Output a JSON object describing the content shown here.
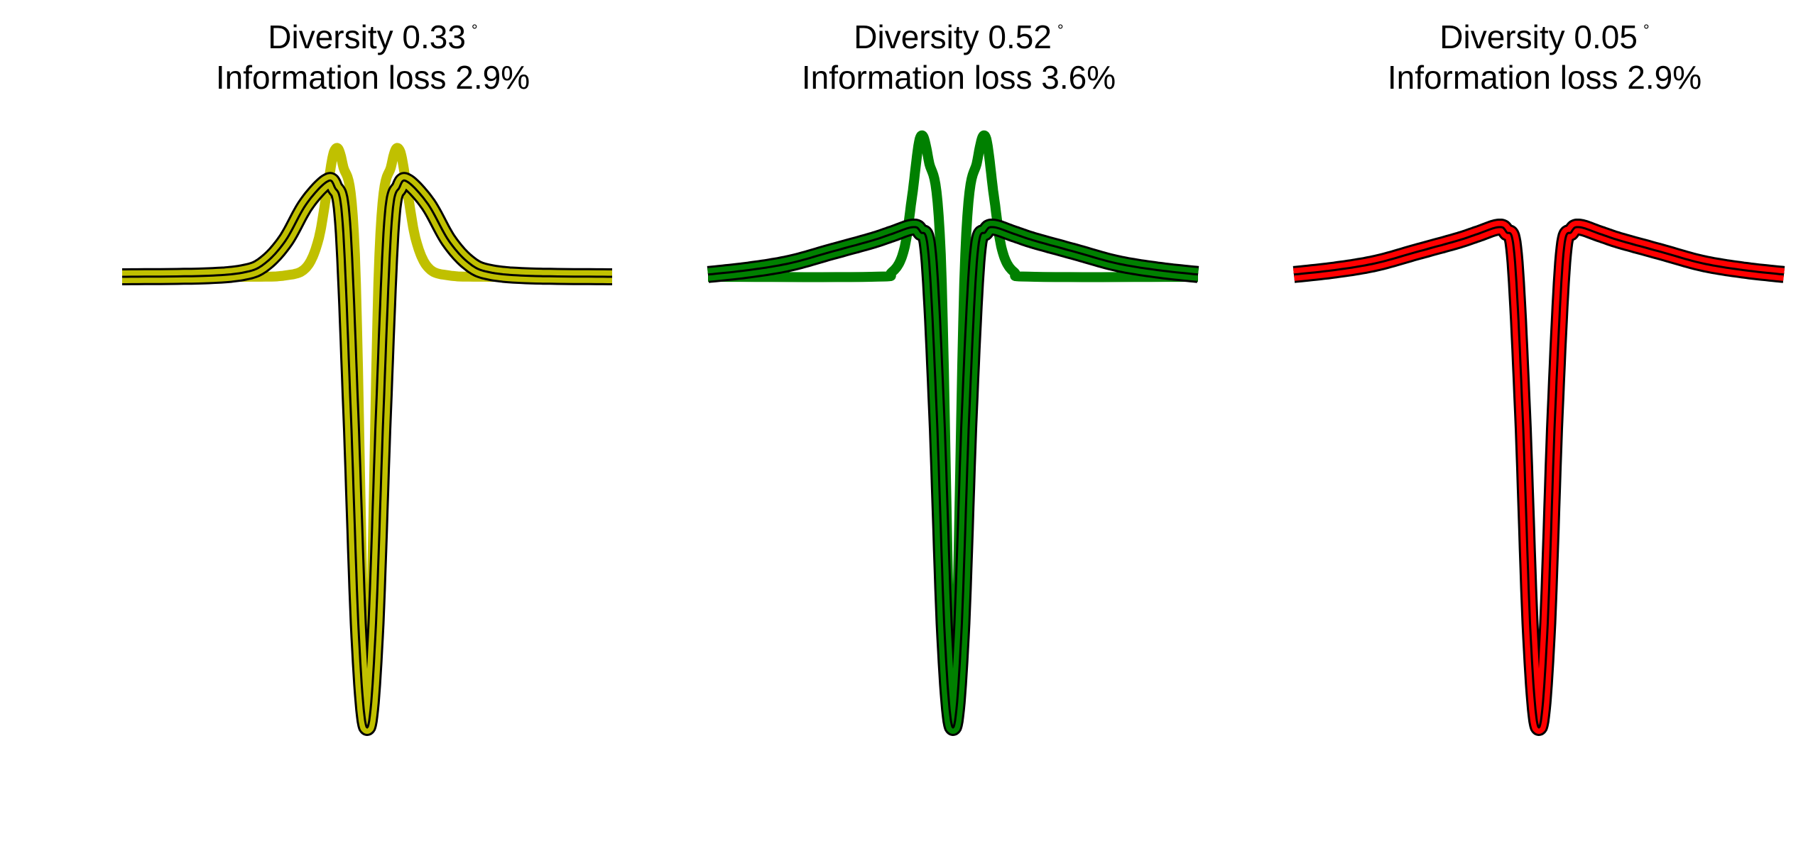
{
  "chart_data": [
    {
      "type": "line",
      "title_line1": "Diversity 0.33",
      "title_degree": "°",
      "title_line2": "Information loss 2.9%",
      "colors": {
        "fill": "#c0c000",
        "outline": "#000000"
      },
      "x_range": [
        -6,
        6
      ],
      "y_range": [
        -1.0,
        0.3
      ],
      "series": [
        {
          "role": "fill-curve-a",
          "x": [
            -6,
            -3,
            -2,
            -1.5,
            -1.2,
            -1.0,
            -0.8,
            -0.6,
            -0.3,
            0,
            0.3,
            0.6,
            0.8,
            1.0,
            1.2,
            1.5,
            2,
            3,
            6
          ],
          "y": [
            0,
            0,
            0.003,
            0.02,
            0.08,
            0.18,
            0.28,
            0.25,
            0.05,
            -1.0,
            0.05,
            0.25,
            0.28,
            0.18,
            0.08,
            0.02,
            0.003,
            0,
            0
          ]
        },
        {
          "role": "outline-pair-b",
          "x": [
            -6,
            -4,
            -3,
            -2.5,
            -2,
            -1.5,
            -1.0,
            -0.8,
            -0.6,
            -0.4,
            -0.2,
            0,
            0.2,
            0.4,
            0.6,
            0.8,
            1.0,
            1.5,
            2,
            2.5,
            3,
            4,
            6
          ],
          "y": [
            0,
            0.002,
            0.01,
            0.03,
            0.08,
            0.16,
            0.21,
            0.2,
            0.12,
            -0.3,
            -0.8,
            -1.0,
            -0.8,
            -0.3,
            0.12,
            0.2,
            0.21,
            0.16,
            0.08,
            0.03,
            0.01,
            0.002,
            0
          ]
        }
      ]
    },
    {
      "type": "line",
      "title_line1": "Diversity 0.52",
      "title_degree": "°",
      "title_line2": "Information loss 3.6%",
      "colors": {
        "fill": "#008000",
        "outline": "#000000"
      },
      "x_range": [
        -6,
        6
      ],
      "y_range": [
        -1.0,
        0.3
      ],
      "series": [
        {
          "role": "fill-curve-a",
          "x": [
            -6,
            -2,
            -1.5,
            -1.2,
            -1.0,
            -0.8,
            -0.6,
            -0.3,
            0,
            0.3,
            0.6,
            0.8,
            1.0,
            1.2,
            1.5,
            2,
            6
          ],
          "y": [
            0,
            0,
            0.01,
            0.06,
            0.18,
            0.31,
            0.26,
            0.05,
            -1.0,
            0.05,
            0.26,
            0.31,
            0.18,
            0.06,
            0.01,
            0,
            0
          ]
        },
        {
          "role": "outline-pair-b",
          "x": [
            -6,
            -5,
            -4,
            -3,
            -2,
            -1.5,
            -1.0,
            -0.8,
            -0.6,
            -0.4,
            -0.2,
            0,
            0.2,
            0.4,
            0.6,
            0.8,
            1.0,
            1.5,
            2,
            3,
            4,
            5,
            6
          ],
          "y": [
            0.005,
            0.015,
            0.03,
            0.055,
            0.08,
            0.095,
            0.11,
            0.1,
            0.05,
            -0.3,
            -0.8,
            -1.0,
            -0.8,
            -0.3,
            0.05,
            0.1,
            0.11,
            0.095,
            0.08,
            0.055,
            0.03,
            0.015,
            0.005
          ]
        }
      ]
    },
    {
      "type": "line",
      "title_line1": "Diversity 0.05",
      "title_degree": "°",
      "title_line2": "Information loss 2.9%",
      "colors": {
        "fill": "#ff0000",
        "outline": "#000000"
      },
      "x_range": [
        -6,
        6
      ],
      "y_range": [
        -1.0,
        0.3
      ],
      "series": [
        {
          "role": "fill-curve-a",
          "x": [
            -6,
            -5,
            -4,
            -3,
            -2,
            -1.5,
            -1.0,
            -0.8,
            -0.6,
            -0.4,
            -0.2,
            0,
            0.2,
            0.4,
            0.6,
            0.8,
            1.0,
            1.5,
            2,
            3,
            4,
            5,
            6
          ],
          "y": [
            0.005,
            0.015,
            0.03,
            0.055,
            0.085,
            0.1,
            0.115,
            0.105,
            0.05,
            -0.3,
            -0.8,
            -1.0,
            -0.8,
            -0.3,
            0.05,
            0.105,
            0.115,
            0.1,
            0.085,
            0.055,
            0.03,
            0.015,
            0.005
          ]
        },
        {
          "role": "outline-pair-b",
          "x": [
            -6,
            -5,
            -4,
            -3,
            -2,
            -1.5,
            -1.0,
            -0.8,
            -0.6,
            -0.4,
            -0.2,
            0,
            0.2,
            0.4,
            0.6,
            0.8,
            1.0,
            1.5,
            2,
            3,
            4,
            5,
            6
          ],
          "y": [
            0.005,
            0.015,
            0.03,
            0.055,
            0.08,
            0.095,
            0.11,
            0.1,
            0.05,
            -0.3,
            -0.8,
            -1.0,
            -0.8,
            -0.3,
            0.05,
            0.1,
            0.11,
            0.095,
            0.08,
            0.055,
            0.03,
            0.015,
            0.005
          ]
        }
      ]
    }
  ]
}
